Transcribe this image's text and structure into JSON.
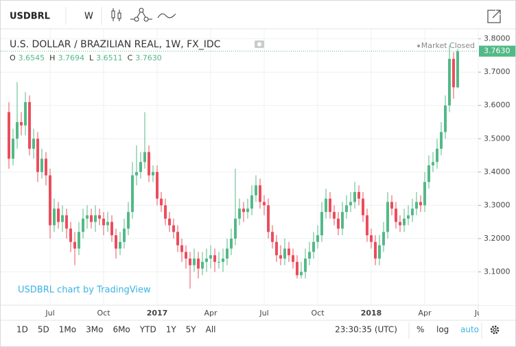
{
  "toolbar": {
    "symbol": "USDBRL",
    "interval": "W"
  },
  "chart_data": {
    "type": "candlestick",
    "title": "U.S. DOLLAR / BRAZILIAN REAL, 1W, FX_IDC",
    "status": "Market Closed",
    "watermark": "USDBRL chart by TradingView",
    "ohlc_legend": [
      {
        "key": "O",
        "value": "3.6545"
      },
      {
        "key": "H",
        "value": "3.7694"
      },
      {
        "key": "L",
        "value": "3.6511"
      },
      {
        "key": "C",
        "value": "3.7630"
      }
    ],
    "categories": [
      null,
      null,
      null,
      null,
      null,
      null,
      null,
      null,
      null,
      null,
      "Jul",
      null,
      null,
      null,
      null,
      null,
      null,
      null,
      null,
      null,
      null,
      null,
      null,
      "Oct",
      null,
      null,
      null,
      null,
      null,
      null,
      null,
      null,
      null,
      null,
      null,
      null,
      "2017",
      null,
      null,
      null,
      null,
      null,
      null,
      null,
      null,
      null,
      null,
      null,
      null,
      "Apr",
      null,
      null,
      null,
      null,
      null,
      null,
      null,
      null,
      null,
      null,
      null,
      null,
      "Jul",
      null,
      null,
      null,
      null,
      null,
      null,
      null,
      null,
      null,
      null,
      null,
      null,
      "Oct",
      null,
      null,
      null,
      null,
      null,
      null,
      null,
      null,
      null,
      null,
      null,
      null,
      "2018",
      null,
      null,
      null,
      null,
      null,
      null,
      null,
      null,
      null,
      null,
      null,
      null,
      "Apr",
      null,
      null,
      null,
      null,
      null,
      null,
      null,
      null,
      null,
      null,
      null,
      null,
      "Ju"
    ],
    "open": [
      3.58,
      3.44,
      3.5,
      3.55,
      3.54,
      3.61,
      3.47,
      3.5,
      3.4,
      3.44,
      3.39,
      3.24,
      3.29,
      3.25,
      3.27,
      3.23,
      3.19,
      3.17,
      3.22,
      3.26,
      3.27,
      3.25,
      3.27,
      3.26,
      3.24,
      3.25,
      3.21,
      3.17,
      3.19,
      3.23,
      3.28,
      3.39,
      3.4,
      3.43,
      3.46,
      3.39,
      3.4,
      3.32,
      3.3,
      3.26,
      3.24,
      3.22,
      3.18,
      3.16,
      3.14,
      3.12,
      3.14,
      3.11,
      3.13,
      3.14,
      3.15,
      3.13,
      3.13,
      3.14,
      3.17,
      3.2,
      3.26,
      3.29,
      3.28,
      3.29,
      3.33,
      3.36,
      3.31,
      3.3,
      3.22,
      3.19,
      3.15,
      3.14,
      3.17,
      3.15,
      3.13,
      3.09,
      3.1,
      3.14,
      3.16,
      3.19,
      3.21,
      3.28,
      3.32,
      3.28,
      3.26,
      3.23,
      3.28,
      3.3,
      3.31,
      3.34,
      3.32,
      3.27,
      3.21,
      3.19,
      3.14,
      3.18,
      3.22,
      3.31,
      3.29,
      3.25,
      3.24,
      3.26,
      3.27,
      3.29,
      3.31,
      3.3,
      3.37,
      3.42,
      3.43,
      3.47,
      3.52,
      3.6,
      3.74,
      3.6545,
      null,
      null,
      null,
      null,
      null
    ],
    "high": [
      3.61,
      3.53,
      3.67,
      3.58,
      3.64,
      3.63,
      3.53,
      3.52,
      3.47,
      3.46,
      3.41,
      3.32,
      3.31,
      3.3,
      3.29,
      3.25,
      3.22,
      3.25,
      3.29,
      3.3,
      3.29,
      3.3,
      3.29,
      3.28,
      3.28,
      3.27,
      3.23,
      3.22,
      3.26,
      3.31,
      3.43,
      3.48,
      3.46,
      3.58,
      3.48,
      3.42,
      3.42,
      3.34,
      3.32,
      3.28,
      3.26,
      3.24,
      3.2,
      3.18,
      3.16,
      3.17,
      3.16,
      3.16,
      3.17,
      3.18,
      3.17,
      3.16,
      3.17,
      3.2,
      3.23,
      3.41,
      3.32,
      3.31,
      3.32,
      3.36,
      3.39,
      3.38,
      3.33,
      3.32,
      3.24,
      3.21,
      3.18,
      3.2,
      3.19,
      3.17,
      3.15,
      3.13,
      3.17,
      3.19,
      3.22,
      3.24,
      3.31,
      3.35,
      3.34,
      3.3,
      3.28,
      3.31,
      3.33,
      3.34,
      3.37,
      3.36,
      3.34,
      3.29,
      3.23,
      3.21,
      3.21,
      3.25,
      3.34,
      3.33,
      3.31,
      3.27,
      3.29,
      3.3,
      3.32,
      3.34,
      3.33,
      3.4,
      3.45,
      3.46,
      3.5,
      3.55,
      3.63,
      3.78,
      3.76,
      3.7694,
      null,
      null,
      null,
      null,
      null
    ],
    "low": [
      3.41,
      3.42,
      3.47,
      3.51,
      3.51,
      3.45,
      3.44,
      3.37,
      3.38,
      3.36,
      3.2,
      3.22,
      3.23,
      3.22,
      3.2,
      3.16,
      3.12,
      3.15,
      3.2,
      3.23,
      3.23,
      3.22,
      3.24,
      3.21,
      3.22,
      3.19,
      3.14,
      3.15,
      3.17,
      3.21,
      3.26,
      3.36,
      3.38,
      3.41,
      3.37,
      3.37,
      3.3,
      3.28,
      3.24,
      3.22,
      3.2,
      3.16,
      3.13,
      3.11,
      3.05,
      3.1,
      3.08,
      3.09,
      3.1,
      3.11,
      3.1,
      3.11,
      3.1,
      3.12,
      3.15,
      3.18,
      3.24,
      3.25,
      3.26,
      3.27,
      3.31,
      3.29,
      3.27,
      3.2,
      3.17,
      3.13,
      3.12,
      3.12,
      3.13,
      3.11,
      3.08,
      3.08,
      3.08,
      3.12,
      3.14,
      3.17,
      3.19,
      3.26,
      3.26,
      3.24,
      3.21,
      3.21,
      3.26,
      3.28,
      3.29,
      3.3,
      3.25,
      3.19,
      3.17,
      3.12,
      3.12,
      3.16,
      3.2,
      3.27,
      3.23,
      3.22,
      3.22,
      3.24,
      3.25,
      3.27,
      3.28,
      3.28,
      3.35,
      3.4,
      3.41,
      3.45,
      3.5,
      3.58,
      3.62,
      3.6511,
      null,
      null,
      null,
      null,
      null
    ],
    "close": [
      3.44,
      3.5,
      3.55,
      3.54,
      3.61,
      3.47,
      3.5,
      3.4,
      3.44,
      3.39,
      3.24,
      3.29,
      3.25,
      3.27,
      3.23,
      3.19,
      3.17,
      3.22,
      3.26,
      3.27,
      3.25,
      3.27,
      3.26,
      3.24,
      3.25,
      3.21,
      3.17,
      3.19,
      3.23,
      3.28,
      3.39,
      3.4,
      3.43,
      3.46,
      3.39,
      3.4,
      3.32,
      3.3,
      3.26,
      3.24,
      3.22,
      3.18,
      3.16,
      3.14,
      3.12,
      3.14,
      3.11,
      3.13,
      3.14,
      3.15,
      3.13,
      3.13,
      3.14,
      3.17,
      3.2,
      3.26,
      3.29,
      3.28,
      3.29,
      3.33,
      3.36,
      3.31,
      3.3,
      3.22,
      3.19,
      3.15,
      3.14,
      3.17,
      3.15,
      3.13,
      3.09,
      3.1,
      3.14,
      3.16,
      3.19,
      3.21,
      3.28,
      3.32,
      3.28,
      3.26,
      3.23,
      3.28,
      3.3,
      3.31,
      3.34,
      3.32,
      3.27,
      3.21,
      3.19,
      3.14,
      3.18,
      3.22,
      3.31,
      3.29,
      3.25,
      3.24,
      3.26,
      3.27,
      3.29,
      3.31,
      3.3,
      3.37,
      3.42,
      3.43,
      3.47,
      3.52,
      3.6,
      3.74,
      3.6545,
      3.763,
      null,
      null,
      null,
      null,
      null
    ],
    "up_color": "#53b987",
    "down_color": "#eb4d5c",
    "ylim": [
      3.0,
      3.824
    ],
    "yticks": [
      {
        "value": 3.1,
        "label": "3.1000"
      },
      {
        "value": 3.2,
        "label": "3.2000"
      },
      {
        "value": 3.3,
        "label": "3.3000"
      },
      {
        "value": 3.4,
        "label": "3.4000"
      },
      {
        "value": 3.5,
        "label": "3.5000"
      },
      {
        "value": 3.6,
        "label": "3.6000"
      },
      {
        "value": 3.7,
        "label": "3.7000"
      },
      {
        "value": 3.8,
        "label": "3.8000"
      }
    ],
    "last_price": {
      "value": 3.763,
      "label": "3.7630"
    },
    "grid": true,
    "log_scale": false
  },
  "bottom_bar": {
    "ranges": [
      "1D",
      "5D",
      "1Mo",
      "3Mo",
      "6Mo",
      "YTD",
      "1Y",
      "5Y",
      "All"
    ],
    "clock": "23:30:35 (UTC)",
    "percent": "%",
    "log": "log",
    "auto": "auto"
  }
}
